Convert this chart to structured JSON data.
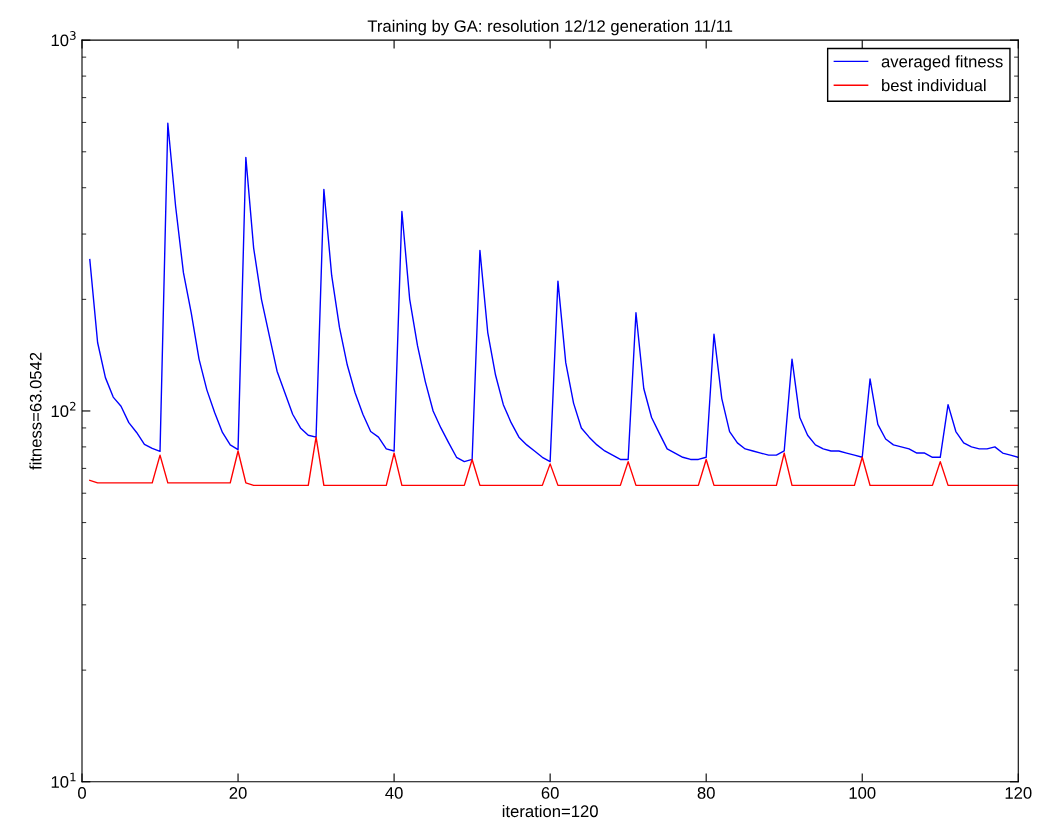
{
  "chart_data": {
    "type": "line",
    "title": "Training by GA: resolution 12/12 generation 11/11",
    "xlabel": "iteration=120",
    "ylabel": "fitness=63.0542",
    "x": [
      1,
      2,
      3,
      4,
      5,
      6,
      7,
      8,
      9,
      10,
      11,
      12,
      13,
      14,
      15,
      16,
      17,
      18,
      19,
      20,
      21,
      22,
      23,
      24,
      25,
      26,
      27,
      28,
      29,
      30,
      31,
      32,
      33,
      34,
      35,
      36,
      37,
      38,
      39,
      40,
      41,
      42,
      43,
      44,
      45,
      46,
      47,
      48,
      49,
      50,
      51,
      52,
      53,
      54,
      55,
      56,
      57,
      58,
      59,
      60,
      61,
      62,
      63,
      64,
      65,
      66,
      67,
      68,
      69,
      70,
      71,
      72,
      73,
      74,
      75,
      76,
      77,
      78,
      79,
      80,
      81,
      82,
      83,
      84,
      85,
      86,
      87,
      88,
      89,
      90,
      91,
      92,
      93,
      94,
      95,
      96,
      97,
      98,
      99,
      100,
      101,
      102,
      103,
      104,
      105,
      106,
      107,
      108,
      109,
      110,
      111,
      112,
      113,
      114,
      115,
      116,
      117,
      118,
      119,
      120
    ],
    "series": [
      {
        "name": "averaged fitness",
        "color": "#0000ff",
        "values": [
          256,
          153,
          123,
          109,
          103,
          93,
          87.5,
          81.3,
          79.3,
          77.8,
          597,
          356,
          236,
          184,
          138,
          114,
          99,
          87.5,
          81,
          78.7,
          483,
          275,
          200,
          160,
          128,
          112,
          98,
          90,
          86,
          85,
          396,
          232,
          168,
          133,
          112,
          98,
          88,
          85,
          79,
          78,
          345,
          200,
          150,
          120,
          100,
          90,
          82,
          75,
          73,
          74,
          271,
          163,
          125,
          104,
          93,
          85,
          81,
          78,
          75,
          73,
          224,
          135,
          105,
          90,
          85,
          81,
          78,
          76,
          74,
          74,
          184,
          115,
          96,
          87,
          79,
          77,
          75,
          74,
          74,
          75,
          161,
          108,
          88,
          82,
          79,
          78,
          77,
          76,
          76,
          78,
          138,
          96,
          86,
          81,
          79,
          78,
          78,
          77,
          76,
          75,
          122,
          92,
          84,
          81,
          80,
          79,
          77,
          77,
          75,
          75,
          104,
          88,
          82,
          80,
          79,
          79,
          80,
          77,
          76,
          75
        ]
      },
      {
        "name": "best individual",
        "color": "#ff0000",
        "values": [
          65,
          64,
          64,
          64,
          64,
          64,
          64,
          64,
          64,
          76,
          64,
          64,
          64,
          64,
          64,
          64,
          64,
          64,
          64,
          78,
          64,
          63,
          63,
          63,
          63,
          63,
          63,
          63,
          63,
          85,
          63,
          63,
          63,
          63,
          63,
          63,
          63,
          63,
          63,
          77,
          63,
          63,
          63,
          63,
          63,
          63,
          63,
          63,
          63,
          74,
          63,
          63,
          63,
          63,
          63,
          63,
          63,
          63,
          63,
          72,
          63,
          63,
          63,
          63,
          63,
          63,
          63,
          63,
          63,
          73,
          63,
          63,
          63,
          63,
          63,
          63,
          63,
          63,
          63,
          74,
          63,
          63,
          63,
          63,
          63,
          63,
          63,
          63,
          63,
          77,
          63,
          63,
          63,
          63,
          63,
          63,
          63,
          63,
          63,
          75,
          63,
          63,
          63,
          63,
          63,
          63,
          63,
          63,
          63,
          73,
          63,
          63,
          63,
          63,
          63,
          63,
          63,
          63,
          63,
          63
        ]
      }
    ],
    "log": "y",
    "xlim": [
      0,
      120
    ],
    "xticks": [
      0,
      20,
      40,
      60,
      80,
      100,
      120
    ],
    "ylim": [
      10,
      1000
    ],
    "yticks": [
      {
        "value": 10,
        "label": "10$^{1}$"
      },
      {
        "value": 100,
        "label": "10$^{2}$"
      },
      {
        "value": 1000,
        "label": "10$^{3}$"
      }
    ],
    "grid": false,
    "legend": "top right",
    "line_style": "solid",
    "marker": "none"
  }
}
